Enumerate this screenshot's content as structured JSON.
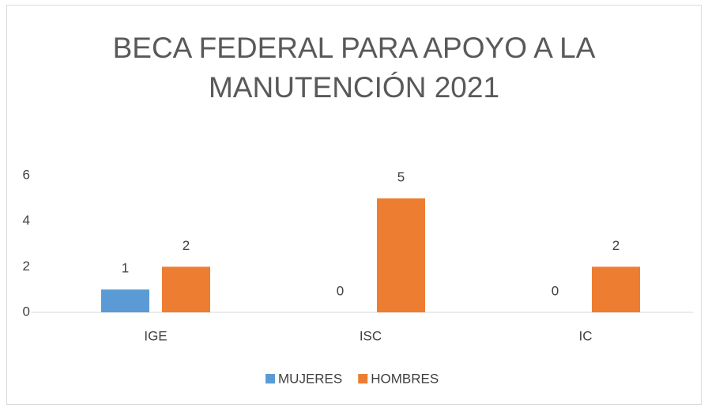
{
  "chart_data": {
    "type": "bar",
    "title": "BECA FEDERAL PARA APOYO A LA MANUTENCIÓN 2021",
    "categories": [
      "IGE",
      "ISC",
      "IC"
    ],
    "series": [
      {
        "name": "MUJERES",
        "color": "#5b9bd5",
        "values": [
          1,
          0,
          0
        ]
      },
      {
        "name": "HOMBRES",
        "color": "#ed7d31",
        "values": [
          2,
          5,
          2
        ]
      }
    ],
    "ylim": [
      0,
      6
    ],
    "yticks": [
      0,
      2,
      4,
      6
    ],
    "grid": false,
    "legend": "bottom"
  }
}
